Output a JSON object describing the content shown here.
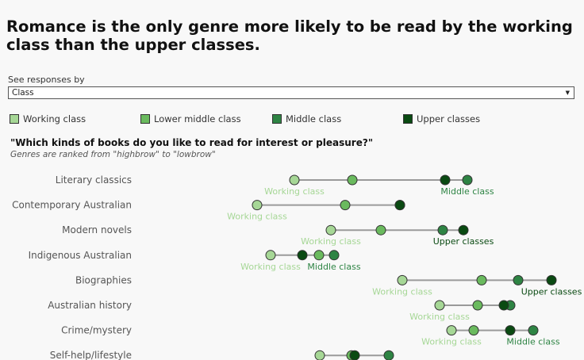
{
  "title": "Romance is the only genre more likely to be read by the working class than the upper classes.",
  "selector": {
    "label": "See responses by",
    "selected": "Class"
  },
  "legend": [
    {
      "label": "Working class",
      "color": "#a6d796"
    },
    {
      "label": "Lower middle class",
      "color": "#6aba5e"
    },
    {
      "label": "Middle class",
      "color": "#2e8444"
    },
    {
      "label": "Upper classes",
      "color": "#0a4a12"
    }
  ],
  "question": "\"Which kinds of books do you like to read for interest or pleasure?\"",
  "question_note": "Genres are ranked from \"highbrow\" to \"lowbrow\"",
  "chart_data": {
    "type": "dot-range",
    "series": [
      "Working class",
      "Lower middle class",
      "Middle class",
      "Upper classes"
    ],
    "xlim": [
      0,
      100
    ],
    "rows": [
      {
        "genre": "Literary classics",
        "values": [
          371,
          444,
          589,
          561
        ],
        "labels": [
          {
            "text": "Working class",
            "series": 0
          },
          {
            "text": "Middle class",
            "series": 2
          }
        ]
      },
      {
        "genre": "Contemporary Australian",
        "values": [
          324,
          435,
          504,
          504
        ],
        "labels": [
          {
            "text": "Working class",
            "series": 0
          }
        ]
      },
      {
        "genre": "Modern novels",
        "values": [
          417,
          480,
          558,
          584
        ],
        "labels": [
          {
            "text": "Working class",
            "series": 0
          },
          {
            "text": "Upper classes",
            "series": 3
          }
        ]
      },
      {
        "genre": "Indigenous Australian",
        "values": [
          341,
          402,
          421,
          381
        ],
        "labels": [
          {
            "text": "Working class",
            "series": 0
          },
          {
            "text": "Middle class",
            "series": 2
          }
        ]
      },
      {
        "genre": "Biographies",
        "values": [
          507,
          607,
          653,
          695
        ],
        "labels": [
          {
            "text": "Working class",
            "series": 0
          },
          {
            "text": "Upper classes",
            "series": 3
          }
        ]
      },
      {
        "genre": "Australian history",
        "values": [
          554,
          602,
          643,
          635
        ],
        "labels": [
          {
            "text": "Working class",
            "series": 0
          }
        ]
      },
      {
        "genre": "Crime/mystery",
        "values": [
          569,
          597,
          672,
          643
        ],
        "labels": [
          {
            "text": "Working class",
            "series": 0
          },
          {
            "text": "Middle class",
            "series": 2
          }
        ]
      },
      {
        "genre": "Self-help/lifestyle",
        "values": [
          403,
          443,
          490,
          447
        ],
        "labels": []
      }
    ]
  }
}
